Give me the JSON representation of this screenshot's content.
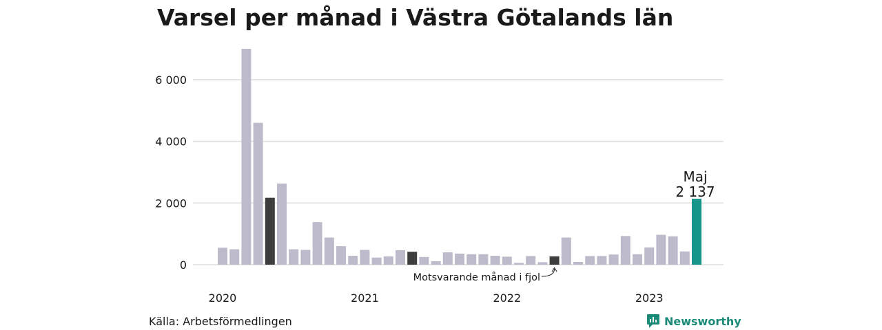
{
  "chart_data": {
    "type": "bar",
    "title": "Varsel per månad i Västra Götalands län",
    "source": "Källa: Arbetsförmedlingen",
    "brand": "Newsworthy",
    "ylim": [
      0,
      7000
    ],
    "y_ticks": [
      0,
      2000,
      4000,
      6000
    ],
    "y_tick_labels": [
      "0",
      "2 000",
      "4 000",
      "6 000"
    ],
    "grid": true,
    "x_tick_labels": [
      "2020",
      "2021",
      "2022",
      "2023"
    ],
    "x_tick_months": [
      "2020-01",
      "2021-01",
      "2022-01",
      "2023-01"
    ],
    "months": [
      "2020-01",
      "2020-02",
      "2020-03",
      "2020-04",
      "2020-05",
      "2020-06",
      "2020-07",
      "2020-08",
      "2020-09",
      "2020-10",
      "2020-11",
      "2020-12",
      "2021-01",
      "2021-02",
      "2021-03",
      "2021-04",
      "2021-05",
      "2021-06",
      "2021-07",
      "2021-08",
      "2021-09",
      "2021-10",
      "2021-11",
      "2021-12",
      "2022-01",
      "2022-02",
      "2022-03",
      "2022-04",
      "2022-05",
      "2022-06",
      "2022-07",
      "2022-08",
      "2022-09",
      "2022-10",
      "2022-11",
      "2022-12",
      "2023-01",
      "2023-02",
      "2023-03",
      "2023-04",
      "2023-05"
    ],
    "values": [
      550,
      500,
      7000,
      4600,
      2170,
      2630,
      500,
      480,
      1380,
      880,
      600,
      290,
      480,
      230,
      270,
      470,
      420,
      250,
      110,
      400,
      360,
      340,
      340,
      290,
      260,
      60,
      280,
      80,
      270,
      880,
      90,
      280,
      280,
      330,
      930,
      340,
      560,
      970,
      920,
      430,
      2137
    ],
    "colors": {
      "default": "#bdbbcb",
      "same_month_previous_years": "#3d3d3d",
      "latest": "#16968a",
      "grid": "#dedede",
      "brand": "#1c8a78"
    },
    "highlight_previous_years": [
      "2020-05",
      "2021-05",
      "2022-05"
    ],
    "latest_month": "2023-05",
    "latest_label_month": "Maj",
    "latest_label_value": "2 137",
    "annotation": "Motsvarande månad i fjol"
  }
}
